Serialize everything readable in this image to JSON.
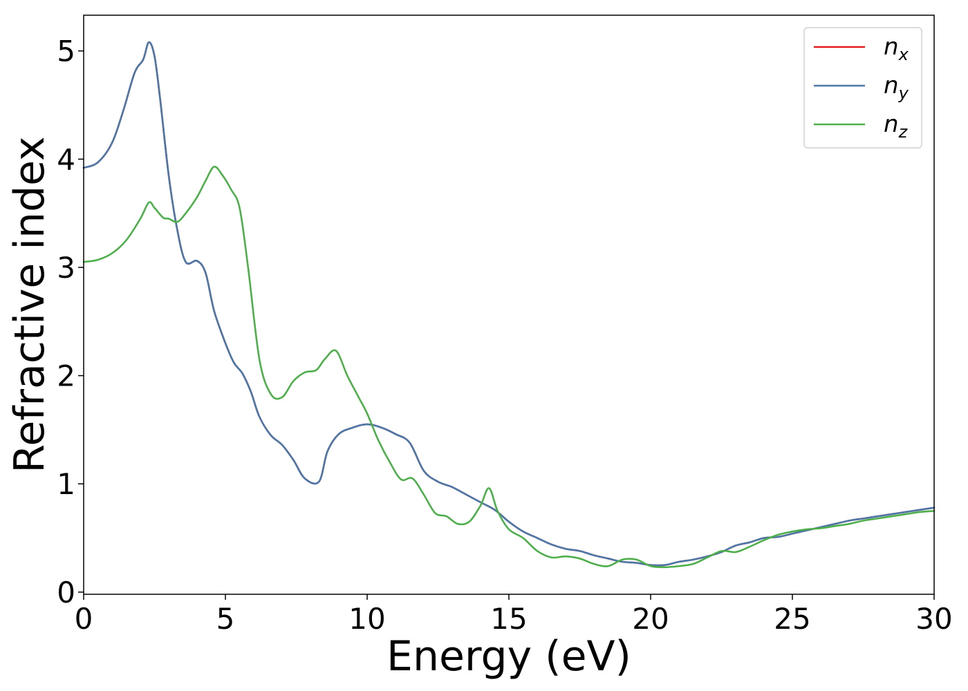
{
  "chart_data": {
    "type": "line",
    "xlabel": "Energy (eV)",
    "ylabel": "Refractive index",
    "xlim": [
      0,
      30
    ],
    "ylim": [
      -0.02,
      5.33
    ],
    "xticks": [
      "0",
      "5",
      "10",
      "15",
      "20",
      "25",
      "30"
    ],
    "yticks": [
      "0",
      "1",
      "2",
      "3",
      "4",
      "5"
    ],
    "grid": false,
    "legend_position": "top-right",
    "series": [
      {
        "name": "n_x",
        "label_base": "n",
        "label_sub": "x",
        "color": "#e41a1c",
        "x": [
          0,
          0.5,
          1,
          1.4,
          1.8,
          2.1,
          2.3,
          2.5,
          2.7,
          3,
          3.3,
          3.6,
          4,
          4.3,
          4.6,
          5,
          5.3,
          5.6,
          5.9,
          6.2,
          6.6,
          7,
          7.4,
          7.8,
          8.3,
          8.6,
          9,
          9.5,
          10,
          10.5,
          11,
          11.5,
          12,
          12.5,
          13,
          13.5,
          14,
          14.5,
          15,
          15.5,
          16,
          16.5,
          17,
          17.5,
          18,
          18.5,
          19,
          19.5,
          20,
          20.5,
          21,
          21.5,
          22,
          22.5,
          23,
          23.5,
          24,
          24.5,
          25,
          25.5,
          26,
          26.5,
          27,
          27.5,
          28,
          28.5,
          29,
          29.5,
          30
        ],
        "y": [
          3.92,
          3.97,
          4.15,
          4.45,
          4.8,
          4.92,
          5.08,
          4.95,
          4.55,
          3.85,
          3.35,
          3.05,
          3.06,
          2.95,
          2.6,
          2.3,
          2.12,
          2.02,
          1.85,
          1.62,
          1.45,
          1.36,
          1.22,
          1.05,
          1.02,
          1.3,
          1.46,
          1.52,
          1.55,
          1.52,
          1.46,
          1.38,
          1.12,
          1.02,
          0.97,
          0.9,
          0.83,
          0.76,
          0.65,
          0.56,
          0.5,
          0.44,
          0.4,
          0.38,
          0.34,
          0.31,
          0.28,
          0.27,
          0.25,
          0.25,
          0.28,
          0.3,
          0.33,
          0.37,
          0.43,
          0.46,
          0.5,
          0.51,
          0.54,
          0.57,
          0.6,
          0.63,
          0.66,
          0.68,
          0.7,
          0.72,
          0.74,
          0.76,
          0.78
        ]
      },
      {
        "name": "n_y",
        "label_base": "n",
        "label_sub": "y",
        "color": "#4a78a8",
        "x": [
          0,
          0.5,
          1,
          1.4,
          1.8,
          2.1,
          2.3,
          2.5,
          2.7,
          3,
          3.3,
          3.6,
          4,
          4.3,
          4.6,
          5,
          5.3,
          5.6,
          5.9,
          6.2,
          6.6,
          7,
          7.4,
          7.8,
          8.3,
          8.6,
          9,
          9.5,
          10,
          10.5,
          11,
          11.5,
          12,
          12.5,
          13,
          13.5,
          14,
          14.5,
          15,
          15.5,
          16,
          16.5,
          17,
          17.5,
          18,
          18.5,
          19,
          19.5,
          20,
          20.5,
          21,
          21.5,
          22,
          22.5,
          23,
          23.5,
          24,
          24.5,
          25,
          25.5,
          26,
          26.5,
          27,
          27.5,
          28,
          28.5,
          29,
          29.5,
          30
        ],
        "y": [
          3.92,
          3.97,
          4.15,
          4.45,
          4.8,
          4.92,
          5.08,
          4.95,
          4.55,
          3.85,
          3.35,
          3.05,
          3.06,
          2.95,
          2.6,
          2.3,
          2.12,
          2.02,
          1.85,
          1.62,
          1.45,
          1.36,
          1.22,
          1.05,
          1.02,
          1.3,
          1.46,
          1.52,
          1.55,
          1.52,
          1.46,
          1.38,
          1.12,
          1.02,
          0.97,
          0.9,
          0.83,
          0.76,
          0.65,
          0.56,
          0.5,
          0.44,
          0.4,
          0.38,
          0.34,
          0.31,
          0.28,
          0.27,
          0.25,
          0.25,
          0.28,
          0.3,
          0.33,
          0.37,
          0.43,
          0.46,
          0.5,
          0.51,
          0.54,
          0.57,
          0.6,
          0.63,
          0.66,
          0.68,
          0.7,
          0.72,
          0.74,
          0.76,
          0.78
        ]
      },
      {
        "name": "n_z",
        "label_base": "n",
        "label_sub": "z",
        "color": "#4daf4a",
        "x": [
          0,
          0.5,
          1,
          1.5,
          2,
          2.3,
          2.5,
          2.8,
          3,
          3.3,
          3.6,
          4,
          4.3,
          4.6,
          4.9,
          5.2,
          5.5,
          5.8,
          6.2,
          6.6,
          7,
          7.4,
          7.8,
          8.2,
          8.5,
          8.9,
          9.3,
          9.7,
          10,
          10.4,
          10.8,
          11.2,
          11.6,
          12,
          12.4,
          12.8,
          13.2,
          13.6,
          14,
          14.3,
          14.6,
          15,
          15.5,
          16,
          16.5,
          17,
          17.5,
          18,
          18.5,
          19,
          19.5,
          20,
          20.5,
          21,
          21.5,
          22,
          22.5,
          23,
          23.5,
          24,
          24.5,
          25,
          25.5,
          26,
          26.5,
          27,
          27.5,
          28,
          28.5,
          29,
          29.5,
          30
        ],
        "y": [
          3.05,
          3.07,
          3.13,
          3.25,
          3.45,
          3.6,
          3.55,
          3.46,
          3.45,
          3.42,
          3.5,
          3.65,
          3.8,
          3.93,
          3.85,
          3.72,
          3.55,
          3.0,
          2.15,
          1.83,
          1.8,
          1.95,
          2.03,
          2.05,
          2.15,
          2.23,
          2.0,
          1.8,
          1.65,
          1.4,
          1.2,
          1.04,
          1.05,
          0.9,
          0.73,
          0.7,
          0.63,
          0.65,
          0.8,
          0.96,
          0.75,
          0.58,
          0.5,
          0.38,
          0.32,
          0.33,
          0.31,
          0.26,
          0.24,
          0.3,
          0.3,
          0.24,
          0.23,
          0.24,
          0.26,
          0.32,
          0.38,
          0.37,
          0.42,
          0.48,
          0.53,
          0.56,
          0.58,
          0.59,
          0.61,
          0.63,
          0.66,
          0.68,
          0.7,
          0.72,
          0.74,
          0.75
        ]
      }
    ]
  }
}
